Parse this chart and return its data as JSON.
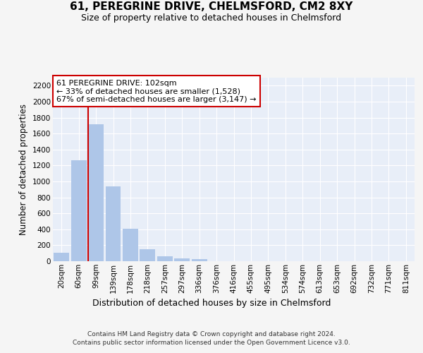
{
  "title": "61, PEREGRINE DRIVE, CHELMSFORD, CM2 8XY",
  "subtitle": "Size of property relative to detached houses in Chelmsford",
  "xlabel": "Distribution of detached houses by size in Chelmsford",
  "ylabel": "Number of detached properties",
  "bar_labels": [
    "20sqm",
    "60sqm",
    "99sqm",
    "139sqm",
    "178sqm",
    "218sqm",
    "257sqm",
    "297sqm",
    "336sqm",
    "376sqm",
    "416sqm",
    "455sqm",
    "495sqm",
    "534sqm",
    "574sqm",
    "613sqm",
    "653sqm",
    "692sqm",
    "732sqm",
    "771sqm",
    "811sqm"
  ],
  "bar_values": [
    110,
    1265,
    1720,
    940,
    405,
    150,
    65,
    35,
    25,
    0,
    0,
    0,
    0,
    0,
    0,
    0,
    0,
    0,
    0,
    0,
    0
  ],
  "bar_color": "#aec6e8",
  "vline_bar_index": 2,
  "vline_color": "#cc0000",
  "ylim": [
    0,
    2300
  ],
  "yticks": [
    0,
    200,
    400,
    600,
    800,
    1000,
    1200,
    1400,
    1600,
    1800,
    2000,
    2200
  ],
  "annotation_line1": "61 PEREGRINE DRIVE: 102sqm",
  "annotation_line2": "← 33% of detached houses are smaller (1,528)",
  "annotation_line3": "67% of semi-detached houses are larger (3,147) →",
  "annotation_box_facecolor": "#ffffff",
  "annotation_box_edgecolor": "#cc0000",
  "footer_line1": "Contains HM Land Registry data © Crown copyright and database right 2024.",
  "footer_line2": "Contains public sector information licensed under the Open Government Licence v3.0.",
  "plot_facecolor": "#e8eef8",
  "fig_facecolor": "#f5f5f5",
  "grid_color": "#ffffff",
  "title_fontsize": 11,
  "subtitle_fontsize": 9,
  "ylabel_fontsize": 8.5,
  "xlabel_fontsize": 9,
  "tick_fontsize": 7.5,
  "annotation_fontsize": 8,
  "footer_fontsize": 6.5
}
